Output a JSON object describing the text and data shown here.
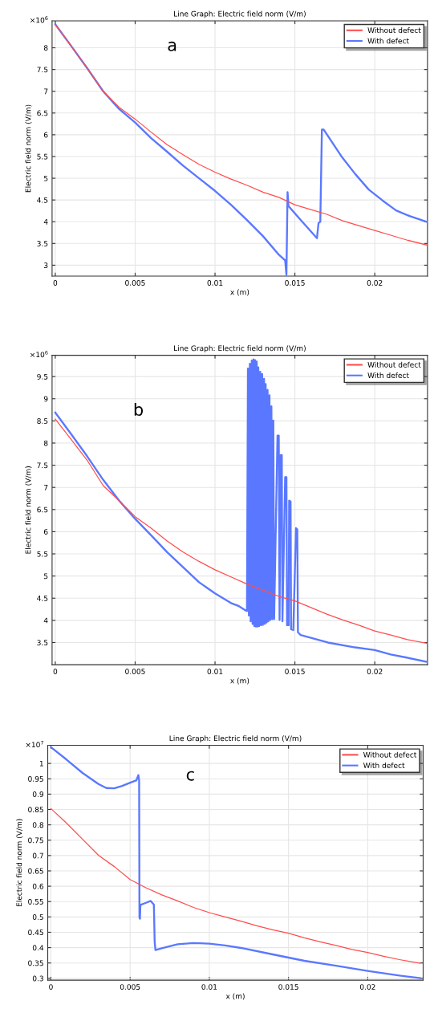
{
  "chart_data": [
    {
      "type": "line",
      "title": "Line Graph: Electric field norm (V/m)",
      "xlabel": "x (m)",
      "ylabel": "Electric field norm (V/m)",
      "annotations": [
        "×10$^{6}$",
        "a"
      ],
      "xlim": [
        -0.0002,
        0.0233
      ],
      "xticks": [
        0,
        0.005,
        0.01,
        0.015,
        0.02
      ],
      "ylim": [
        2.75,
        8.62
      ],
      "yticks": [
        3,
        3.5,
        4,
        4.5,
        5,
        5.5,
        6,
        6.5,
        7,
        7.5,
        8
      ],
      "grid": true,
      "legend": "top right",
      "series": [
        {
          "name": "Without defect",
          "color": "#ff4d4d",
          "x": [
            0,
            0.001,
            0.002,
            0.003,
            0.004,
            0.005,
            0.006,
            0.007,
            0.008,
            0.009,
            0.01,
            0.011,
            0.012,
            0.013,
            0.014,
            0.015,
            0.016,
            0.017,
            0.018,
            0.019,
            0.02,
            0.021,
            0.022,
            0.0233
          ],
          "values": [
            8.54,
            8.04,
            7.53,
            7.0,
            6.63,
            6.36,
            6.06,
            5.77,
            5.54,
            5.32,
            5.14,
            4.98,
            4.84,
            4.68,
            4.56,
            4.39,
            4.28,
            4.17,
            4.02,
            3.91,
            3.8,
            3.69,
            3.58,
            3.46
          ]
        },
        {
          "name": "With defect",
          "color": "#5a78ff",
          "x": [
            0,
            0.001,
            0.002,
            0.003,
            0.004,
            0.005,
            0.006,
            0.007,
            0.008,
            0.009,
            0.01,
            0.011,
            0.012,
            0.013,
            0.014,
            0.01439,
            0.01447,
            0.01454,
            0.0146,
            0.01536,
            0.01638,
            0.01648,
            0.01659,
            0.01669,
            0.0168,
            0.0179,
            0.01877,
            0.01962,
            0.02048,
            0.02133,
            0.02218,
            0.0233
          ],
          "values": [
            8.54,
            8.04,
            7.53,
            7.0,
            6.59,
            6.28,
            5.92,
            5.61,
            5.29,
            5.0,
            4.71,
            4.39,
            4.04,
            3.67,
            3.24,
            3.11,
            2.78,
            4.68,
            4.36,
            4.04,
            3.62,
            3.97,
            4.0,
            6.12,
            6.12,
            5.51,
            5.1,
            4.74,
            4.49,
            4.26,
            4.13,
            3.99
          ]
        }
      ]
    },
    {
      "type": "line",
      "title": "Line Graph: Electric field norm (V/m)",
      "xlabel": "x (m)",
      "ylabel": "Electric field norm (V/m)",
      "annotations": [
        "×10$^{6}$",
        "b"
      ],
      "xlim": [
        -0.0002,
        0.0233
      ],
      "xticks": [
        0,
        0.005,
        0.01,
        0.015,
        0.02
      ],
      "ylim": [
        3.0,
        9.98
      ],
      "yticks": [
        3.5,
        4,
        4.5,
        5,
        5.5,
        6,
        6.5,
        7,
        7.5,
        8,
        8.5,
        9,
        9.5
      ],
      "grid": true,
      "legend": "top right",
      "series": [
        {
          "name": "Without defect",
          "color": "#ff4d4d",
          "x": [
            0,
            0.001,
            0.002,
            0.003,
            0.004,
            0.005,
            0.006,
            0.007,
            0.008,
            0.009,
            0.01,
            0.011,
            0.012,
            0.013,
            0.014,
            0.015,
            0.016,
            0.017,
            0.018,
            0.019,
            0.02,
            0.021,
            0.022,
            0.0233
          ],
          "values": [
            8.54,
            8.08,
            7.61,
            7.04,
            6.7,
            6.34,
            6.08,
            5.79,
            5.54,
            5.33,
            5.14,
            4.98,
            4.82,
            4.68,
            4.54,
            4.44,
            4.29,
            4.14,
            4.01,
            3.89,
            3.76,
            3.67,
            3.57,
            3.48
          ]
        },
        {
          "name": "With defect",
          "color": "#5a78ff",
          "x": [
            0,
            0.001,
            0.002,
            0.003,
            0.004,
            0.005,
            0.006,
            0.007,
            0.008,
            0.009,
            0.01,
            0.011,
            0.0115,
            0.01189,
            0.012,
            0.01206,
            0.01212,
            0.01218,
            0.01223,
            0.0123,
            0.01235,
            0.01241,
            0.01246,
            0.01251,
            0.01256,
            0.01261,
            0.01266,
            0.01271,
            0.01276,
            0.01283,
            0.01288,
            0.01295,
            0.013,
            0.01307,
            0.01312,
            0.01317,
            0.01323,
            0.01329,
            0.01334,
            0.01341,
            0.01346,
            0.01353,
            0.01358,
            0.01365,
            0.0137,
            0.01391,
            0.01399,
            0.01404,
            0.01411,
            0.01418,
            0.01422,
            0.01439,
            0.01447,
            0.01451,
            0.01461,
            0.01464,
            0.01473,
            0.01476,
            0.0149,
            0.01507,
            0.01515,
            0.01519,
            0.01536,
            0.01706,
            0.01877,
            0.02,
            0.021,
            0.022,
            0.0233
          ],
          "values": [
            8.69,
            8.2,
            7.7,
            7.17,
            6.7,
            6.29,
            5.92,
            5.54,
            5.2,
            4.86,
            4.61,
            4.39,
            4.32,
            4.23,
            4.21,
            9.68,
            4.11,
            9.79,
            3.98,
            9.86,
            3.92,
            9.89,
            3.87,
            9.87,
            3.86,
            9.84,
            3.86,
            9.71,
            3.87,
            9.61,
            3.89,
            9.56,
            3.9,
            9.45,
            3.92,
            9.33,
            3.95,
            9.2,
            3.98,
            9.08,
            4.01,
            8.83,
            4.03,
            8.51,
            4.03,
            8.17,
            8.17,
            4.01,
            7.73,
            7.73,
            3.98,
            7.23,
            7.23,
            3.89,
            3.89,
            6.7,
            6.68,
            3.8,
            3.78,
            6.08,
            6.05,
            3.73,
            3.67,
            3.5,
            3.39,
            3.33,
            3.23,
            3.16,
            3.06
          ]
        }
      ]
    },
    {
      "type": "line",
      "title": "Line Graph: Electric field norm (V/m)",
      "xlabel": "x (m)",
      "ylabel": "Electric field norm (V/m)",
      "annotations": [
        "×10$^{7}$",
        "c"
      ],
      "xlim": [
        -0.0002,
        0.0235
      ],
      "xticks": [
        0,
        0.005,
        0.01,
        0.015,
        0.02
      ],
      "ylim": [
        0.294,
        1.059
      ],
      "yticks": [
        0.3,
        0.35,
        0.4,
        0.45,
        0.5,
        0.55,
        0.6,
        0.65,
        0.7,
        0.75,
        0.8,
        0.85,
        0.9,
        0.95,
        1
      ],
      "grid": true,
      "legend": "top right",
      "series": [
        {
          "name": "Without defect",
          "color": "#ff4d4d",
          "x": [
            0,
            0.001,
            0.002,
            0.003,
            0.004,
            0.005,
            0.006,
            0.007,
            0.008,
            0.009,
            0.01,
            0.011,
            0.012,
            0.013,
            0.014,
            0.015,
            0.016,
            0.017,
            0.018,
            0.019,
            0.02,
            0.021,
            0.022,
            0.0233
          ],
          "values": [
            0.853,
            0.805,
            0.753,
            0.701,
            0.664,
            0.622,
            0.595,
            0.572,
            0.552,
            0.531,
            0.514,
            0.5,
            0.486,
            0.471,
            0.458,
            0.447,
            0.432,
            0.419,
            0.407,
            0.394,
            0.384,
            0.372,
            0.361,
            0.349
          ]
        },
        {
          "name": "With defect",
          "color": "#5a78ff",
          "x": [
            0,
            0.001,
            0.002,
            0.003,
            0.0035,
            0.004,
            0.0045,
            0.005,
            0.0054,
            0.00552,
            0.00557,
            0.00559,
            0.00562,
            0.00565,
            0.006,
            0.0063,
            0.0065,
            0.00655,
            0.0066,
            0.007,
            0.008,
            0.009,
            0.01,
            0.011,
            0.012,
            0.014,
            0.016,
            0.018,
            0.02,
            0.022,
            0.0233
          ],
          "values": [
            1.053,
            1.012,
            0.969,
            0.933,
            0.92,
            0.919,
            0.927,
            0.937,
            0.945,
            0.962,
            0.945,
            0.498,
            0.494,
            0.539,
            0.546,
            0.552,
            0.54,
            0.419,
            0.392,
            0.398,
            0.411,
            0.415,
            0.413,
            0.407,
            0.399,
            0.378,
            0.357,
            0.341,
            0.324,
            0.309,
            0.301
          ]
        }
      ]
    }
  ]
}
